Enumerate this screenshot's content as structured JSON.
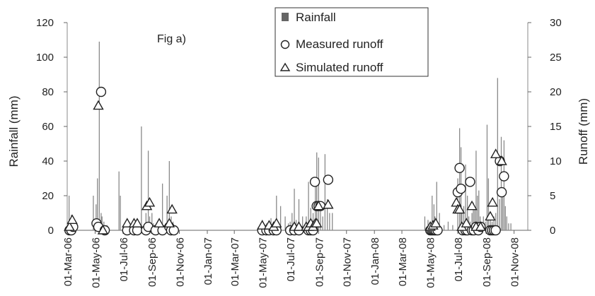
{
  "chart_data": {
    "type": "bar",
    "annotation": "Fig a)",
    "ylabel": "Rainfall (mm)",
    "y2label": "Runoff (mm)",
    "ylim": [
      0,
      120
    ],
    "y2lim": [
      0,
      30
    ],
    "yticks": [
      0,
      20,
      40,
      60,
      80,
      100,
      120
    ],
    "y2ticks": [
      0,
      5,
      10,
      15,
      20,
      25,
      30
    ],
    "xlim": [
      "2006-03-01",
      "2008-12-01"
    ],
    "xticks": [
      "01-Mar-06",
      "01-May-06",
      "01-Jul-06",
      "01-Sep-06",
      "01-Nov-06",
      "01-Jan-07",
      "01-Mar-07",
      "01-May-07",
      "01-Jul-07",
      "01-Sep-07",
      "01-Nov-07",
      "01-Jan-08",
      "01-Mar-08",
      "01-May-08",
      "01-Jul-08",
      "01-Sep-08",
      "01-Nov-08"
    ],
    "grid": false,
    "legend": {
      "placement": "top-center",
      "entries": [
        "Rainfall",
        "Measured runoff",
        "Simulated runoff"
      ]
    },
    "series": [
      {
        "name": "Rainfall",
        "kind": "bar",
        "axis": "left",
        "color": "#8a8a8a",
        "x": [
          "2006-03-05",
          "2006-03-10",
          "2006-03-14",
          "2006-04-27",
          "2006-05-03",
          "2006-05-06",
          "2006-05-10",
          "2006-05-14",
          "2006-05-16",
          "2006-05-20",
          "2006-05-27",
          "2006-06-22",
          "2006-06-25",
          "2006-07-10",
          "2006-07-25",
          "2006-08-10",
          "2006-08-20",
          "2006-08-25",
          "2006-08-28",
          "2006-09-02",
          "2006-09-05",
          "2006-09-25",
          "2006-10-05",
          "2006-10-10",
          "2006-10-14",
          "2006-10-18",
          "2007-05-01",
          "2007-05-10",
          "2007-05-20",
          "2007-05-27",
          "2007-06-01",
          "2007-06-10",
          "2007-06-20",
          "2007-06-27",
          "2007-07-01",
          "2007-07-05",
          "2007-07-10",
          "2007-07-14",
          "2007-07-20",
          "2007-07-28",
          "2007-08-05",
          "2007-08-10",
          "2007-08-15",
          "2007-08-20",
          "2007-08-25",
          "2007-08-28",
          "2007-09-01",
          "2007-09-05",
          "2007-09-10",
          "2007-09-15",
          "2007-09-20",
          "2007-09-25",
          "2007-10-01",
          "2008-04-20",
          "2008-04-27",
          "2008-05-02",
          "2008-05-06",
          "2008-05-10",
          "2008-05-12",
          "2008-05-16",
          "2008-05-22",
          "2008-06-01",
          "2008-06-10",
          "2008-06-20",
          "2008-07-01",
          "2008-07-05",
          "2008-07-08",
          "2008-07-10",
          "2008-07-14",
          "2008-07-18",
          "2008-07-22",
          "2008-07-25",
          "2008-07-28",
          "2008-08-01",
          "2008-08-04",
          "2008-08-07",
          "2008-08-10",
          "2008-08-13",
          "2008-08-16",
          "2008-08-19",
          "2008-08-22",
          "2008-08-26",
          "2008-08-30",
          "2008-09-03",
          "2008-09-06",
          "2008-09-10",
          "2008-09-14",
          "2008-09-18",
          "2008-09-22",
          "2008-09-26",
          "2008-09-30",
          "2008-10-04",
          "2008-10-07",
          "2008-10-10",
          "2008-10-13",
          "2008-10-16",
          "2008-10-20",
          "2008-10-25"
        ],
        "values": [
          20,
          9,
          5,
          20,
          15,
          30,
          109,
          10,
          8,
          5,
          3,
          34,
          20,
          5,
          5,
          60,
          10,
          46,
          8,
          10,
          4,
          27,
          20,
          40,
          8,
          5,
          6,
          4,
          7,
          3,
          20,
          14,
          8,
          4,
          5,
          10,
          24,
          6,
          18,
          8,
          8,
          28,
          13,
          10,
          28,
          45,
          42,
          16,
          8,
          44,
          18,
          10,
          10,
          8,
          6,
          5,
          20,
          15,
          8,
          28,
          10,
          3,
          5,
          3,
          30,
          59,
          48,
          10,
          14,
          38,
          20,
          8,
          5,
          10,
          16,
          12,
          46,
          20,
          23,
          8,
          4,
          8,
          5,
          61,
          30,
          8,
          5,
          8,
          10,
          88,
          18,
          54,
          24,
          52,
          14,
          8,
          4,
          4
        ]
      },
      {
        "name": "Measured runoff",
        "kind": "scatter",
        "marker": "circle",
        "axis": "right",
        "x": [
          "2006-03-06",
          "2006-03-10",
          "2006-03-14",
          "2006-05-04",
          "2006-05-08",
          "2006-05-14",
          "2006-05-22",
          "2006-07-10",
          "2006-07-25",
          "2006-08-01",
          "2006-08-20",
          "2006-08-25",
          "2006-09-10",
          "2006-09-25",
          "2006-10-10",
          "2006-10-14",
          "2006-10-20",
          "2007-05-01",
          "2007-05-10",
          "2007-05-16",
          "2007-05-26",
          "2007-06-01",
          "2007-07-01",
          "2007-07-10",
          "2007-07-20",
          "2007-08-10",
          "2007-08-15",
          "2007-08-20",
          "2007-08-24",
          "2007-08-28",
          "2007-09-01",
          "2007-09-05",
          "2007-09-22",
          "2008-05-02",
          "2008-05-05",
          "2008-05-08",
          "2008-05-11",
          "2008-05-14",
          "2008-05-18",
          "2008-07-01",
          "2008-07-05",
          "2008-07-08",
          "2008-07-12",
          "2008-07-18",
          "2008-07-22",
          "2008-07-28",
          "2008-08-01",
          "2008-08-05",
          "2008-08-10",
          "2008-08-15",
          "2008-08-20",
          "2008-09-10",
          "2008-09-14",
          "2008-09-18",
          "2008-09-22",
          "2008-10-01",
          "2008-10-05",
          "2008-10-10"
        ],
        "values": [
          0,
          0,
          0.5,
          1,
          0.5,
          20,
          0,
          0,
          0,
          0,
          0,
          0.5,
          0,
          0,
          0.5,
          0,
          0,
          0,
          0,
          0,
          0,
          0,
          0,
          0,
          0,
          0,
          0,
          0,
          7,
          3.5,
          3.5,
          3.5,
          7.3,
          0,
          0,
          0,
          0,
          0,
          0,
          5.5,
          9,
          6,
          0,
          0,
          0,
          7,
          0,
          0,
          0.5,
          0,
          0.5,
          0,
          0,
          0,
          0,
          10,
          5.5,
          7.8
        ]
      },
      {
        "name": "Simulated runoff",
        "kind": "scatter",
        "marker": "triangle",
        "axis": "right",
        "x": [
          "2006-03-06",
          "2006-03-12",
          "2006-05-08",
          "2006-05-18",
          "2006-07-10",
          "2006-07-25",
          "2006-08-01",
          "2006-08-22",
          "2006-08-28",
          "2006-09-18",
          "2006-10-10",
          "2006-10-16",
          "2007-05-01",
          "2007-05-16",
          "2007-05-26",
          "2007-06-01",
          "2007-07-10",
          "2007-07-20",
          "2007-08-05",
          "2007-08-10",
          "2007-08-15",
          "2007-08-20",
          "2007-08-25",
          "2007-08-28",
          "2007-09-01",
          "2007-09-22",
          "2008-05-02",
          "2008-05-08",
          "2008-05-14",
          "2008-06-28",
          "2008-07-01",
          "2008-07-05",
          "2008-07-10",
          "2008-07-20",
          "2008-08-01",
          "2008-08-10",
          "2008-08-20",
          "2008-09-10",
          "2008-09-15",
          "2008-09-22",
          "2008-10-05"
        ],
        "values": [
          0.5,
          1.5,
          18,
          0,
          1,
          1,
          1,
          3.5,
          4,
          1,
          1,
          3,
          0.7,
          0.7,
          0.5,
          1,
          0.5,
          0.5,
          0.5,
          0.5,
          1,
          0.5,
          1,
          1,
          3.5,
          3.7,
          0.5,
          0.7,
          1,
          4,
          3,
          3,
          0.5,
          1,
          3.5,
          0.5,
          0.5,
          2,
          4,
          11,
          10
        ]
      }
    ]
  }
}
